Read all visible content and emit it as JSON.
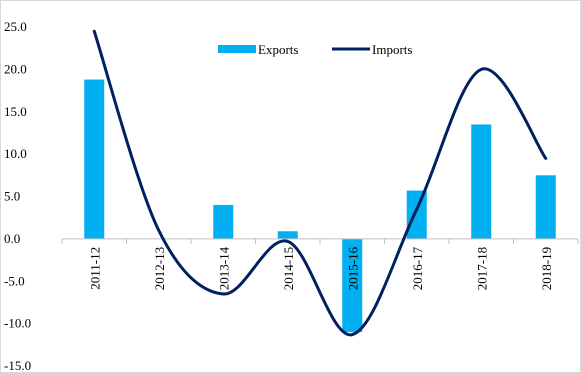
{
  "chart_data": {
    "type": "bar",
    "title": "",
    "xlabel": "",
    "ylabel": "",
    "categories": [
      "2011-12",
      "2012-13",
      "2013-14",
      "2014-15",
      "2015-16",
      "2016-17",
      "2017-18",
      "2018-19"
    ],
    "ylim": [
      -15,
      25
    ],
    "yticks": [
      "25.0",
      "20.0",
      "15.0",
      "10.0",
      "5.0",
      "0.0",
      "-5.0",
      "-10.0",
      "-15.0"
    ],
    "grid": false,
    "legend_position": "top-center",
    "series": [
      {
        "name": "Exports",
        "type": "bar",
        "color": "#00B0F0",
        "values": [
          18.8,
          0.0,
          4.0,
          0.9,
          -11.0,
          5.7,
          13.5,
          7.5
        ]
      },
      {
        "name": "Imports",
        "type": "line",
        "smooth": true,
        "color": "#002060",
        "values": [
          24.5,
          1.0,
          -6.5,
          -0.3,
          -11.3,
          3.5,
          20.0,
          9.5
        ]
      }
    ]
  }
}
